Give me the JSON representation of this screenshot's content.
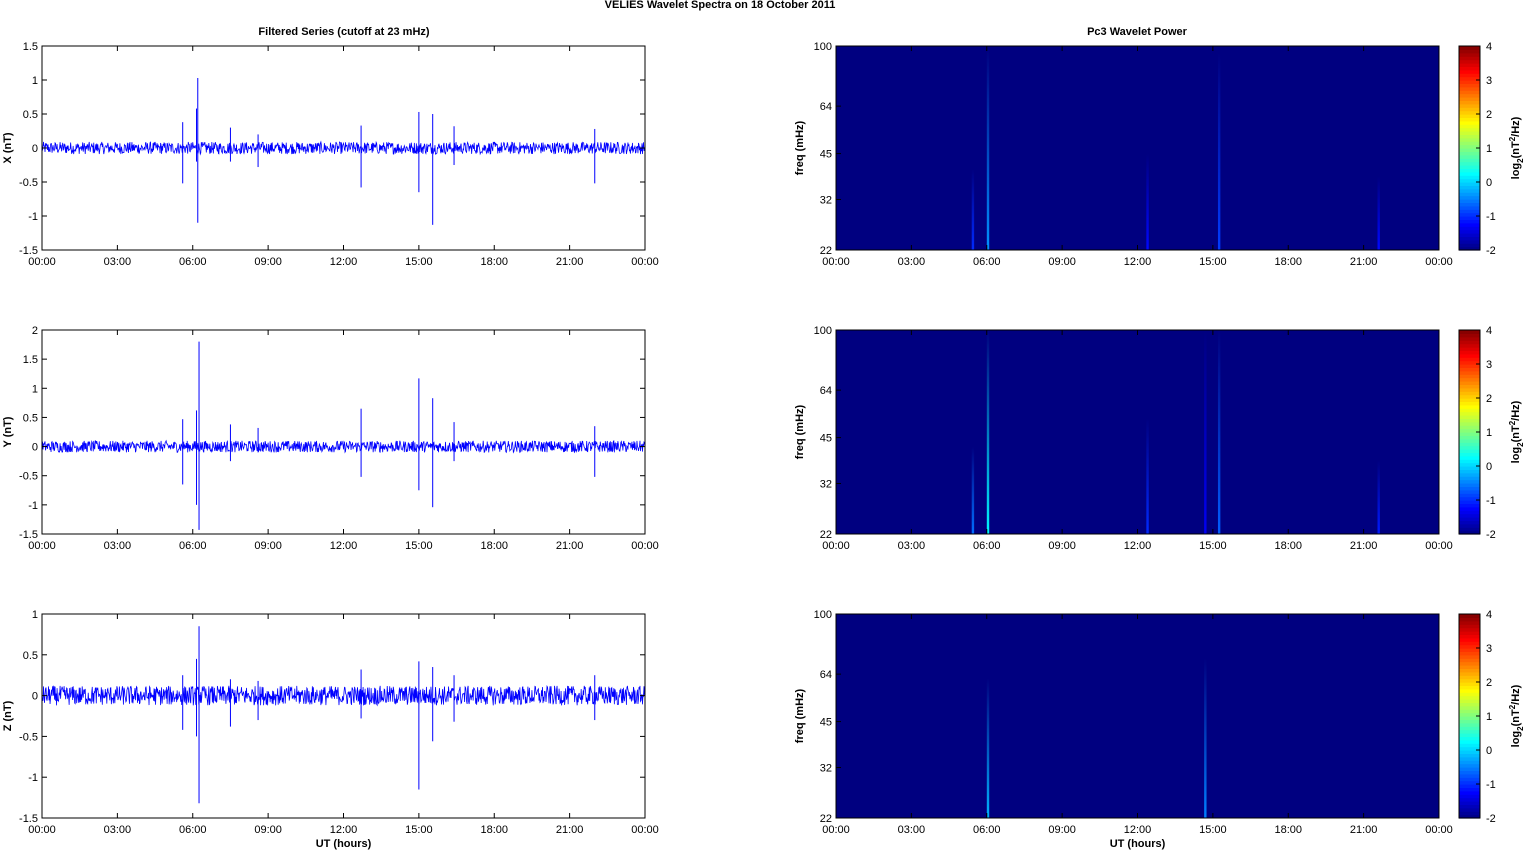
{
  "figure": {
    "title": "VELIES Wavelet Spectra on 18 October   2011",
    "left_title": "Filtered Series (cutoff at 23 mHz)",
    "right_title": "Pc3 Wavelet Power",
    "xlabel": "UT (hours)",
    "freq_label": "freq (mHz)",
    "colorbar_label_parts": [
      "log",
      "2",
      "(nT",
      "2",
      "/Hz)"
    ]
  },
  "chart_data": [
    {
      "type": "line",
      "component": "X",
      "ylabel": "X (nT)",
      "xlim": [
        0,
        24
      ],
      "ylim": [
        -1.5,
        1.5
      ],
      "xticks": [
        "00:00",
        "03:00",
        "06:00",
        "09:00",
        "12:00",
        "15:00",
        "18:00",
        "21:00",
        "00:00"
      ],
      "yticks": [
        -1.5,
        -1,
        -0.5,
        0,
        0.5,
        1,
        1.5
      ],
      "color": "#0000ff",
      "noise_amplitude_nT": 0.09,
      "spikes": [
        {
          "t": 5.6,
          "max": 0.38,
          "min": -0.52
        },
        {
          "t": 6.2,
          "max": 1.03,
          "min": -1.1
        },
        {
          "t": 6.15,
          "max": 0.58,
          "min": -0.2
        },
        {
          "t": 7.5,
          "max": 0.3,
          "min": -0.2
        },
        {
          "t": 8.6,
          "max": 0.2,
          "min": -0.28
        },
        {
          "t": 12.7,
          "max": 0.33,
          "min": -0.58
        },
        {
          "t": 15.0,
          "max": 0.53,
          "min": -0.65
        },
        {
          "t": 15.55,
          "max": 0.5,
          "min": -1.13
        },
        {
          "t": 16.4,
          "max": 0.32,
          "min": -0.25
        },
        {
          "t": 22.0,
          "max": 0.28,
          "min": -0.52
        }
      ]
    },
    {
      "type": "line",
      "component": "Y",
      "ylabel": "Y (nT)",
      "xlim": [
        0,
        24
      ],
      "ylim": [
        -1.5,
        2
      ],
      "xticks": [
        "00:00",
        "03:00",
        "06:00",
        "09:00",
        "12:00",
        "15:00",
        "18:00",
        "21:00",
        "00:00"
      ],
      "yticks": [
        -1.5,
        -1,
        -0.5,
        0,
        0.5,
        1,
        1.5,
        2
      ],
      "color": "#0000ff",
      "noise_amplitude_nT": 0.1,
      "spikes": [
        {
          "t": 5.6,
          "max": 0.47,
          "min": -0.65
        },
        {
          "t": 6.25,
          "max": 1.8,
          "min": -1.43
        },
        {
          "t": 6.15,
          "max": 0.62,
          "min": -1.0
        },
        {
          "t": 7.5,
          "max": 0.38,
          "min": -0.25
        },
        {
          "t": 8.6,
          "max": 0.32,
          "min": -0.1
        },
        {
          "t": 12.7,
          "max": 0.65,
          "min": -0.52
        },
        {
          "t": 15.0,
          "max": 1.17,
          "min": -0.75
        },
        {
          "t": 15.55,
          "max": 0.83,
          "min": -1.04
        },
        {
          "t": 16.4,
          "max": 0.42,
          "min": -0.25
        },
        {
          "t": 22.0,
          "max": 0.35,
          "min": -0.52
        }
      ]
    },
    {
      "type": "line",
      "component": "Z",
      "ylabel": "Z (nT)",
      "xlim": [
        0,
        24
      ],
      "ylim": [
        -1.5,
        1
      ],
      "xticks": [
        "00:00",
        "03:00",
        "06:00",
        "09:00",
        "12:00",
        "15:00",
        "18:00",
        "21:00",
        "00:00"
      ],
      "yticks": [
        -1.5,
        -1,
        -0.5,
        0,
        0.5,
        1
      ],
      "color": "#0000ff",
      "noise_amplitude_nT": 0.12,
      "spikes": [
        {
          "t": 5.6,
          "max": 0.25,
          "min": -0.42
        },
        {
          "t": 6.25,
          "max": 0.85,
          "min": -1.32
        },
        {
          "t": 6.15,
          "max": 0.45,
          "min": -0.5
        },
        {
          "t": 7.5,
          "max": 0.2,
          "min": -0.38
        },
        {
          "t": 8.6,
          "max": 0.18,
          "min": -0.3
        },
        {
          "t": 12.7,
          "max": 0.32,
          "min": -0.28
        },
        {
          "t": 15.0,
          "max": 0.42,
          "min": -1.15
        },
        {
          "t": 15.55,
          "max": 0.35,
          "min": -0.56
        },
        {
          "t": 16.4,
          "max": 0.25,
          "min": -0.32
        },
        {
          "t": 22.0,
          "max": 0.25,
          "min": -0.3
        }
      ]
    },
    {
      "type": "heatmap",
      "component": "X",
      "xlim": [
        0,
        24
      ],
      "ylim_mHz": [
        22,
        100
      ],
      "yscale": "log",
      "xticks": [
        "00:00",
        "03:00",
        "06:00",
        "09:00",
        "12:00",
        "15:00",
        "18:00",
        "21:00",
        "00:00"
      ],
      "yticks": [
        22,
        32,
        45,
        64,
        100
      ],
      "colorbar_range": [
        -2,
        4
      ],
      "colorbar_ticks": [
        -2,
        -1,
        0,
        1,
        2,
        3,
        4
      ],
      "colormap": "jet",
      "background_value": -2,
      "bursts": [
        {
          "t": 5.45,
          "f_top": 40,
          "value": -1.0
        },
        {
          "t": 6.05,
          "f_top": 98,
          "value": -0.4
        },
        {
          "t": 12.4,
          "f_top": 45,
          "value": -1.2
        },
        {
          "t": 15.25,
          "f_top": 95,
          "value": -0.9
        },
        {
          "t": 21.6,
          "f_top": 38,
          "value": -1.2
        }
      ]
    },
    {
      "type": "heatmap",
      "component": "Y",
      "xlim": [
        0,
        24
      ],
      "ylim_mHz": [
        22,
        100
      ],
      "yscale": "log",
      "xticks": [
        "00:00",
        "03:00",
        "06:00",
        "09:00",
        "12:00",
        "15:00",
        "18:00",
        "21:00",
        "00:00"
      ],
      "yticks": [
        22,
        32,
        45,
        64,
        100
      ],
      "colorbar_range": [
        -2,
        4
      ],
      "colorbar_ticks": [
        -2,
        -1,
        0,
        1,
        2,
        3,
        4
      ],
      "colormap": "jet",
      "background_value": -2,
      "bursts": [
        {
          "t": 5.45,
          "f_top": 42,
          "value": -0.6
        },
        {
          "t": 6.05,
          "f_top": 100,
          "value": 0.2
        },
        {
          "t": 12.4,
          "f_top": 52,
          "value": -1.0
        },
        {
          "t": 14.7,
          "f_top": 100,
          "value": -1.3
        },
        {
          "t": 15.25,
          "f_top": 100,
          "value": -0.7
        },
        {
          "t": 21.6,
          "f_top": 38,
          "value": -1.1
        }
      ]
    },
    {
      "type": "heatmap",
      "component": "Z",
      "xlim": [
        0,
        24
      ],
      "ylim_mHz": [
        22,
        100
      ],
      "yscale": "log",
      "xticks": [
        "00:00",
        "03:00",
        "06:00",
        "09:00",
        "12:00",
        "15:00",
        "18:00",
        "21:00",
        "00:00"
      ],
      "yticks": [
        22,
        32,
        45,
        64,
        100
      ],
      "colorbar_range": [
        -2,
        4
      ],
      "colorbar_ticks": [
        -2,
        -1,
        0,
        1,
        2,
        3,
        4
      ],
      "colormap": "jet",
      "background_value": -2,
      "bursts": [
        {
          "t": 6.05,
          "f_top": 62,
          "value": -0.2
        },
        {
          "t": 14.7,
          "f_top": 72,
          "value": -0.5
        }
      ]
    }
  ]
}
